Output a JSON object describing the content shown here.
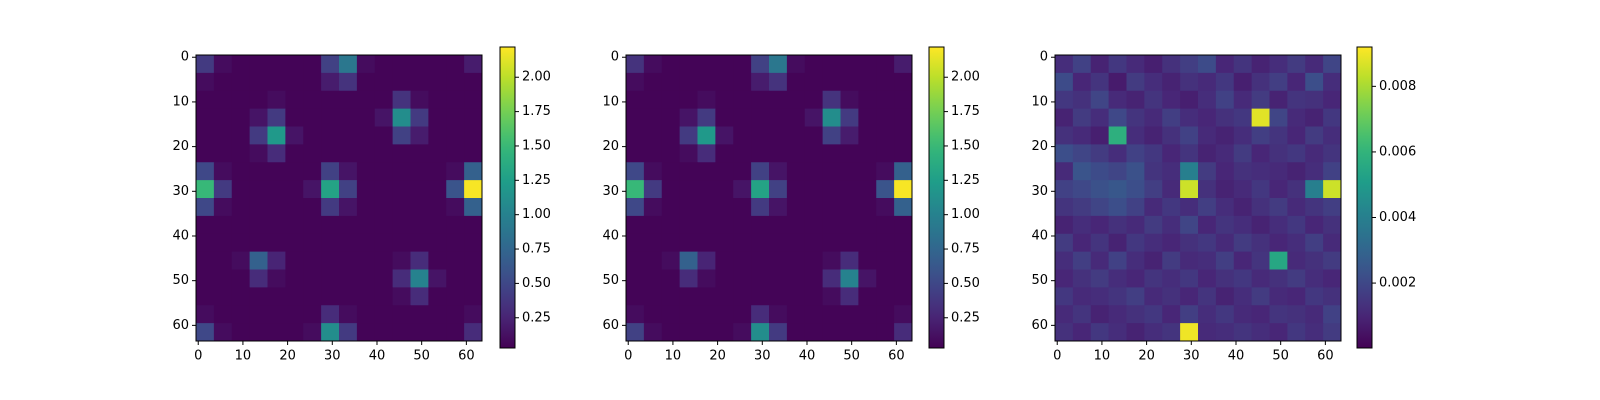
{
  "chart_data": [
    {
      "type": "heatmap",
      "colormap": "viridis",
      "xlim": [
        -0.5,
        63.5
      ],
      "ylim": [
        63.5,
        -0.5
      ],
      "xticks": [
        0,
        10,
        20,
        30,
        40,
        50,
        60
      ],
      "yticks": [
        0,
        10,
        20,
        30,
        40,
        50,
        60
      ],
      "clim": [
        0.03,
        2.22
      ],
      "cticks": [
        0.25,
        {
          "value": 0.5,
          "label": "0.50"
        },
        0.75,
        {
          "value": 1,
          "label": "1.00"
        },
        1.25,
        {
          "value": 1.5,
          "label": "1.50"
        },
        1.75,
        {
          "value": 2,
          "label": "2.00"
        }
      ],
      "values": [
        [
          0.4,
          0.1,
          0.05,
          0.05,
          0.05,
          0.05,
          0.05,
          0.45,
          0.9,
          0.1,
          0.05,
          0.05,
          0.05,
          0.05,
          0.05,
          0.2
        ],
        [
          0.1,
          0.05,
          0.05,
          0.05,
          0.05,
          0.05,
          0.05,
          0.2,
          0.35,
          0.05,
          0.05,
          0.05,
          0.05,
          0.05,
          0.05,
          0.05
        ],
        [
          0.05,
          0.05,
          0.05,
          0.05,
          0.1,
          0.05,
          0.05,
          0.05,
          0.05,
          0.05,
          0.05,
          0.35,
          0.1,
          0.05,
          0.05,
          0.05
        ],
        [
          0.05,
          0.05,
          0.05,
          0.15,
          0.4,
          0.05,
          0.05,
          0.05,
          0.05,
          0.05,
          0.15,
          1.1,
          0.4,
          0.05,
          0.05,
          0.05
        ],
        [
          0.05,
          0.05,
          0.05,
          0.4,
          1.2,
          0.15,
          0.05,
          0.05,
          0.05,
          0.05,
          0.05,
          0.45,
          0.2,
          0.05,
          0.05,
          0.05
        ],
        [
          0.05,
          0.05,
          0.05,
          0.1,
          0.3,
          0.05,
          0.05,
          0.05,
          0.05,
          0.05,
          0.05,
          0.05,
          0.05,
          0.05,
          0.05,
          0.05
        ],
        [
          0.5,
          0.1,
          0.05,
          0.05,
          0.05,
          0.05,
          0.05,
          0.45,
          0.15,
          0.05,
          0.05,
          0.05,
          0.05,
          0.05,
          0.1,
          0.7
        ],
        [
          1.5,
          0.4,
          0.05,
          0.05,
          0.05,
          0.05,
          0.15,
          1.3,
          0.45,
          0.05,
          0.05,
          0.05,
          0.05,
          0.05,
          0.6,
          2.2
        ],
        [
          0.5,
          0.1,
          0.05,
          0.05,
          0.05,
          0.05,
          0.05,
          0.4,
          0.15,
          0.05,
          0.05,
          0.05,
          0.05,
          0.05,
          0.1,
          0.7
        ],
        [
          0.05,
          0.05,
          0.05,
          0.05,
          0.05,
          0.05,
          0.05,
          0.05,
          0.05,
          0.05,
          0.05,
          0.05,
          0.05,
          0.05,
          0.05,
          0.05
        ],
        [
          0.05,
          0.05,
          0.05,
          0.05,
          0.05,
          0.05,
          0.05,
          0.05,
          0.05,
          0.05,
          0.05,
          0.05,
          0.05,
          0.05,
          0.05,
          0.05
        ],
        [
          0.05,
          0.05,
          0.1,
          0.7,
          0.25,
          0.05,
          0.05,
          0.05,
          0.05,
          0.05,
          0.05,
          0.1,
          0.3,
          0.05,
          0.05,
          0.05
        ],
        [
          0.05,
          0.05,
          0.05,
          0.3,
          0.1,
          0.05,
          0.05,
          0.05,
          0.05,
          0.05,
          0.05,
          0.3,
          1.0,
          0.15,
          0.05,
          0.05
        ],
        [
          0.05,
          0.05,
          0.05,
          0.05,
          0.05,
          0.05,
          0.05,
          0.05,
          0.05,
          0.05,
          0.05,
          0.1,
          0.3,
          0.05,
          0.05,
          0.05
        ],
        [
          0.1,
          0.05,
          0.05,
          0.05,
          0.05,
          0.05,
          0.05,
          0.3,
          0.1,
          0.05,
          0.05,
          0.05,
          0.05,
          0.05,
          0.05,
          0.1
        ],
        [
          0.5,
          0.1,
          0.05,
          0.05,
          0.05,
          0.05,
          0.1,
          1.1,
          0.4,
          0.05,
          0.05,
          0.05,
          0.05,
          0.05,
          0.05,
          0.3
        ]
      ]
    },
    {
      "type": "heatmap",
      "colormap": "viridis",
      "xlim": [
        -0.5,
        63.5
      ],
      "ylim": [
        63.5,
        -0.5
      ],
      "xticks": [
        0,
        10,
        20,
        30,
        40,
        50,
        60
      ],
      "yticks": [
        0,
        10,
        20,
        30,
        40,
        50,
        60
      ],
      "clim": [
        0.03,
        2.22
      ],
      "cticks": [
        0.25,
        {
          "value": 0.5,
          "label": "0.50"
        },
        0.75,
        {
          "value": 1,
          "label": "1.00"
        },
        1.25,
        {
          "value": 1.5,
          "label": "1.50"
        },
        1.75,
        {
          "value": 2,
          "label": "2.00"
        }
      ],
      "values": [
        [
          0.35,
          0.1,
          0.05,
          0.05,
          0.05,
          0.05,
          0.05,
          0.45,
          0.9,
          0.1,
          0.05,
          0.05,
          0.05,
          0.05,
          0.05,
          0.2
        ],
        [
          0.1,
          0.05,
          0.05,
          0.05,
          0.05,
          0.05,
          0.05,
          0.2,
          0.35,
          0.05,
          0.05,
          0.05,
          0.05,
          0.05,
          0.05,
          0.05
        ],
        [
          0.05,
          0.05,
          0.05,
          0.05,
          0.1,
          0.05,
          0.05,
          0.05,
          0.05,
          0.05,
          0.05,
          0.35,
          0.1,
          0.05,
          0.05,
          0.05
        ],
        [
          0.05,
          0.05,
          0.05,
          0.15,
          0.4,
          0.05,
          0.05,
          0.05,
          0.05,
          0.05,
          0.15,
          1.1,
          0.4,
          0.05,
          0.05,
          0.05
        ],
        [
          0.05,
          0.05,
          0.05,
          0.4,
          1.2,
          0.15,
          0.05,
          0.05,
          0.05,
          0.05,
          0.05,
          0.45,
          0.2,
          0.05,
          0.05,
          0.05
        ],
        [
          0.05,
          0.05,
          0.05,
          0.1,
          0.3,
          0.05,
          0.05,
          0.05,
          0.05,
          0.05,
          0.05,
          0.05,
          0.05,
          0.05,
          0.05,
          0.05
        ],
        [
          0.5,
          0.1,
          0.05,
          0.05,
          0.05,
          0.05,
          0.05,
          0.45,
          0.15,
          0.05,
          0.05,
          0.05,
          0.05,
          0.05,
          0.1,
          0.7
        ],
        [
          1.5,
          0.4,
          0.05,
          0.05,
          0.05,
          0.05,
          0.15,
          1.3,
          0.45,
          0.05,
          0.05,
          0.05,
          0.05,
          0.05,
          0.6,
          2.2
        ],
        [
          0.5,
          0.1,
          0.05,
          0.05,
          0.05,
          0.05,
          0.05,
          0.4,
          0.15,
          0.05,
          0.05,
          0.05,
          0.05,
          0.05,
          0.1,
          0.7
        ],
        [
          0.05,
          0.05,
          0.05,
          0.05,
          0.05,
          0.05,
          0.05,
          0.05,
          0.05,
          0.05,
          0.05,
          0.05,
          0.05,
          0.05,
          0.05,
          0.05
        ],
        [
          0.05,
          0.05,
          0.05,
          0.05,
          0.05,
          0.05,
          0.05,
          0.05,
          0.05,
          0.05,
          0.05,
          0.05,
          0.05,
          0.05,
          0.05,
          0.05
        ],
        [
          0.05,
          0.05,
          0.1,
          0.7,
          0.25,
          0.05,
          0.05,
          0.05,
          0.05,
          0.05,
          0.05,
          0.1,
          0.3,
          0.05,
          0.05,
          0.05
        ],
        [
          0.05,
          0.05,
          0.05,
          0.3,
          0.1,
          0.05,
          0.05,
          0.05,
          0.05,
          0.05,
          0.05,
          0.3,
          1.0,
          0.15,
          0.05,
          0.05
        ],
        [
          0.05,
          0.05,
          0.05,
          0.05,
          0.05,
          0.05,
          0.05,
          0.05,
          0.05,
          0.05,
          0.05,
          0.1,
          0.3,
          0.05,
          0.05,
          0.05
        ],
        [
          0.1,
          0.05,
          0.05,
          0.05,
          0.05,
          0.05,
          0.05,
          0.3,
          0.1,
          0.05,
          0.05,
          0.05,
          0.05,
          0.05,
          0.05,
          0.1
        ],
        [
          0.45,
          0.1,
          0.05,
          0.05,
          0.05,
          0.05,
          0.1,
          1.1,
          0.4,
          0.05,
          0.05,
          0.05,
          0.05,
          0.05,
          0.05,
          0.3
        ]
      ]
    },
    {
      "type": "heatmap",
      "colormap": "viridis",
      "xlim": [
        -0.5,
        63.5
      ],
      "ylim": [
        63.5,
        -0.5
      ],
      "xticks": [
        0,
        10,
        20,
        30,
        40,
        50,
        60
      ],
      "yticks": [
        0,
        10,
        20,
        30,
        40,
        50,
        60
      ],
      "clim": [
        2e-05,
        0.0092
      ],
      "cticks": [
        0.002,
        0.004,
        0.006,
        0.008
      ],
      "values": [
        [
          0.0012,
          0.0018,
          0.0009,
          0.0015,
          0.0011,
          0.0008,
          0.0013,
          0.0017,
          0.0021,
          0.001,
          0.0014,
          0.0009,
          0.0012,
          0.0016,
          0.0011,
          0.0019
        ],
        [
          0.0021,
          0.001,
          0.0014,
          0.0007,
          0.0016,
          0.0012,
          0.0009,
          0.0013,
          0.0011,
          0.0015,
          0.0008,
          0.0013,
          0.0017,
          0.001,
          0.0022,
          0.0012
        ],
        [
          0.0015,
          0.0013,
          0.0019,
          0.0011,
          0.0009,
          0.0014,
          0.001,
          0.0008,
          0.0012,
          0.0018,
          0.0011,
          0.0016,
          0.0009,
          0.0014,
          0.0013,
          0.001
        ],
        [
          0.0009,
          0.0016,
          0.0012,
          0.002,
          0.0014,
          0.0011,
          0.0017,
          0.0012,
          0.001,
          0.0013,
          0.0015,
          0.0088,
          0.0019,
          0.0011,
          0.0009,
          0.0015
        ],
        [
          0.0013,
          0.0011,
          0.0008,
          0.0058,
          0.0012,
          0.0009,
          0.0013,
          0.0018,
          0.0011,
          0.0009,
          0.0012,
          0.0017,
          0.0014,
          0.001,
          0.0016,
          0.0012
        ],
        [
          0.0022,
          0.0019,
          0.0016,
          0.0012,
          0.0018,
          0.0015,
          0.001,
          0.0014,
          0.0009,
          0.0011,
          0.0016,
          0.001,
          0.0013,
          0.0015,
          0.0011,
          0.0014
        ],
        [
          0.0011,
          0.0024,
          0.0021,
          0.0019,
          0.0023,
          0.0014,
          0.0012,
          0.004,
          0.0016,
          0.001,
          0.0013,
          0.0012,
          0.0011,
          0.0009,
          0.0012,
          0.0018
        ],
        [
          0.0018,
          0.002,
          0.0023,
          0.0025,
          0.0022,
          0.0017,
          0.0011,
          0.0085,
          0.0013,
          0.0009,
          0.0011,
          0.0015,
          0.001,
          0.0013,
          0.004,
          0.0085
        ],
        [
          0.0014,
          0.0016,
          0.0019,
          0.0022,
          0.0018,
          0.0011,
          0.0015,
          0.0012,
          0.0017,
          0.0012,
          0.0009,
          0.0013,
          0.0016,
          0.0011,
          0.0014,
          0.0017
        ],
        [
          0.0009,
          0.0012,
          0.001,
          0.0013,
          0.0011,
          0.0016,
          0.0012,
          0.0019,
          0.001,
          0.0014,
          0.0012,
          0.0009,
          0.0012,
          0.0015,
          0.001,
          0.0013
        ],
        [
          0.0016,
          0.001,
          0.0014,
          0.0009,
          0.0015,
          0.0012,
          0.001,
          0.0013,
          0.0015,
          0.0011,
          0.0016,
          0.0013,
          0.001,
          0.0012,
          0.0017,
          0.0011
        ],
        [
          0.0012,
          0.0017,
          0.0011,
          0.0018,
          0.0012,
          0.0009,
          0.0016,
          0.0011,
          0.0012,
          0.0017,
          0.001,
          0.0014,
          0.0055,
          0.0011,
          0.0013,
          0.0016
        ],
        [
          0.001,
          0.0013,
          0.0016,
          0.0012,
          0.001,
          0.0014,
          0.0012,
          0.0015,
          0.001,
          0.0013,
          0.0015,
          0.0011,
          0.0013,
          0.0016,
          0.0012,
          0.001
        ],
        [
          0.0015,
          0.0011,
          0.0012,
          0.0014,
          0.0017,
          0.0011,
          0.0013,
          0.001,
          0.0014,
          0.0009,
          0.0012,
          0.0016,
          0.0011,
          0.001,
          0.0015,
          0.0013
        ],
        [
          0.0011,
          0.0014,
          0.0009,
          0.0011,
          0.0013,
          0.0015,
          0.001,
          0.0017,
          0.0012,
          0.0015,
          0.0011,
          0.001,
          0.0014,
          0.0013,
          0.0011,
          0.0018
        ],
        [
          0.0013,
          0.001,
          0.0015,
          0.0012,
          0.0009,
          0.0012,
          0.0014,
          0.009,
          0.0011,
          0.0012,
          0.0014,
          0.0012,
          0.001,
          0.0015,
          0.0012,
          0.0016
        ]
      ]
    }
  ]
}
